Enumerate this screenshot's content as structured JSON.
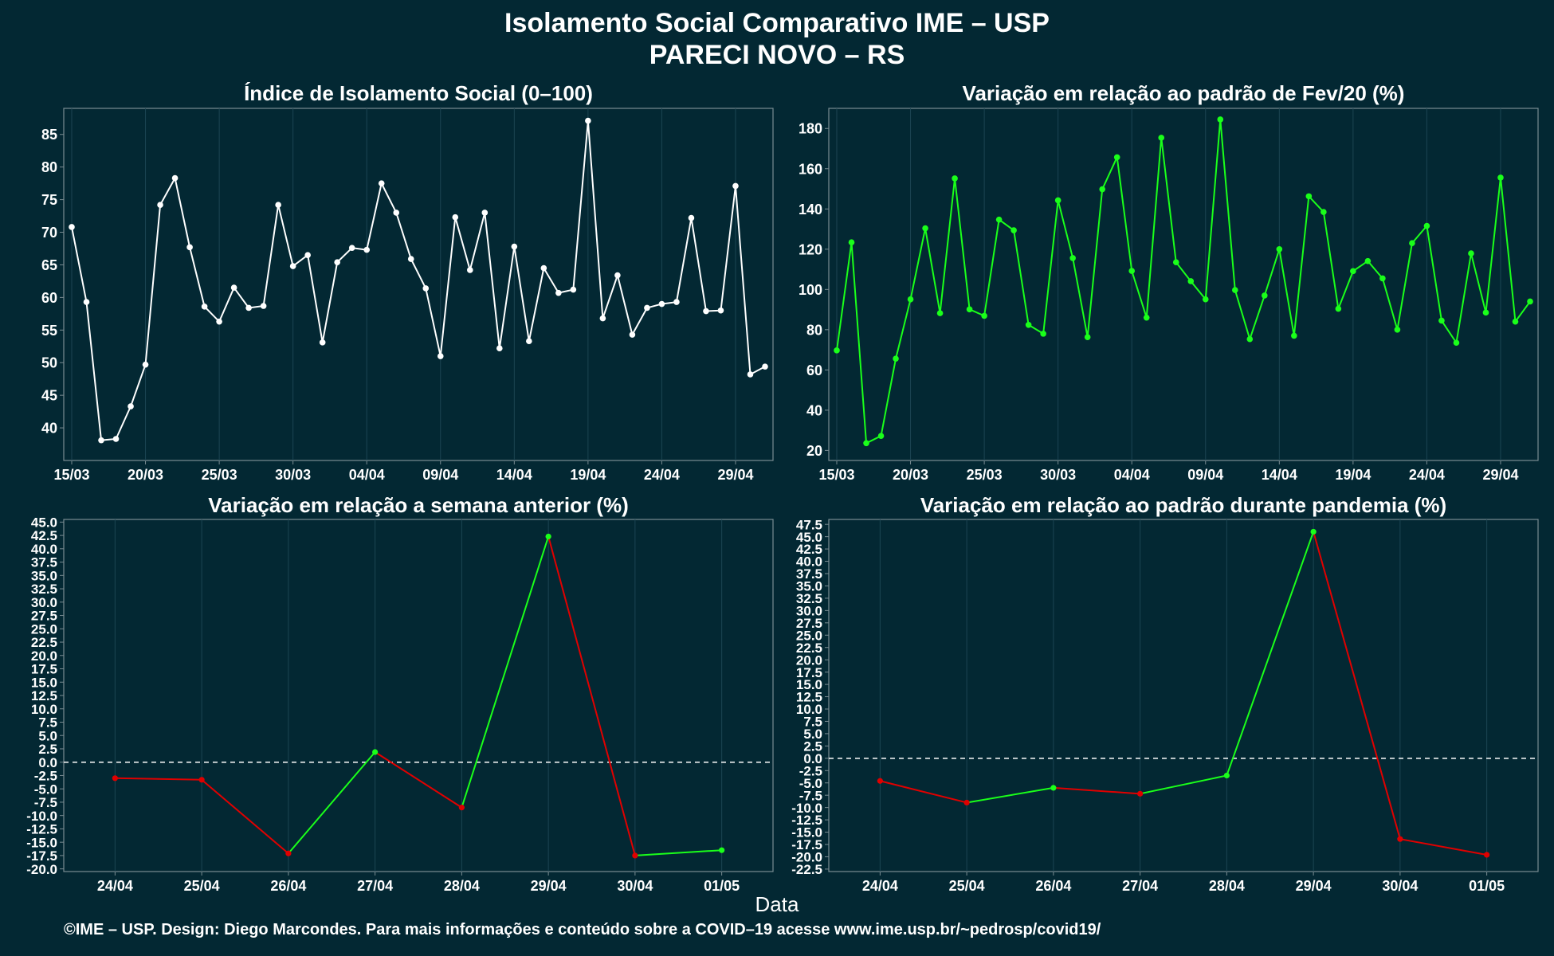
{
  "header": {
    "title": "Isolamento Social Comparativo IME – USP",
    "subtitle": "PARECI NOVO – RS"
  },
  "footer": {
    "credit": "©IME – USP. Design: Diego Marcondes. Para mais informações e conteúdo sobre a COVID–19 acesse www.ime.usp.br/~pedrosp/covid19/"
  },
  "axis": {
    "xlabel": "Data"
  },
  "colors": {
    "background": "#032833",
    "white": "#ffffff",
    "green": "#1aff1a",
    "red": "#e00000",
    "grid": "#1c4553",
    "frame": "#7a8c92"
  },
  "chart_data": [
    {
      "type": "line",
      "title": "Índice de Isolamento Social (0–100)",
      "tick_labels": [
        "15/03",
        "20/03",
        "25/03",
        "30/03",
        "04/04",
        "09/04",
        "14/04",
        "19/04",
        "24/04",
        "29/04"
      ],
      "tick_index": [
        0,
        5,
        10,
        15,
        20,
        25,
        30,
        35,
        40,
        45
      ],
      "ylim": [
        35,
        89
      ],
      "yticks": [
        40,
        45,
        50,
        55,
        60,
        65,
        70,
        75,
        80,
        85
      ],
      "color": "#ffffff",
      "grid": true,
      "values": [
        70.8,
        59.3,
        38.1,
        38.3,
        43.3,
        49.7,
        74.2,
        78.3,
        67.7,
        58.6,
        56.3,
        61.5,
        58.4,
        58.7,
        74.2,
        64.8,
        66.5,
        53.1,
        65.4,
        67.6,
        67.3,
        77.5,
        73.0,
        65.9,
        61.4,
        51.0,
        72.3,
        64.2,
        73.0,
        52.2,
        67.8,
        53.3,
        64.5,
        60.7,
        61.2,
        87.1,
        56.8,
        63.4,
        54.3,
        58.4,
        59.0,
        59.3,
        72.2,
        57.9,
        58.0,
        77.1,
        48.2,
        49.4
      ]
    },
    {
      "type": "line",
      "title": "Variação em relação ao padrão de Fev/20 (%)",
      "tick_labels": [
        "15/03",
        "20/03",
        "25/03",
        "30/03",
        "04/04",
        "09/04",
        "14/04",
        "19/04",
        "24/04",
        "29/04"
      ],
      "tick_index": [
        0,
        5,
        10,
        15,
        20,
        25,
        30,
        35,
        40,
        45
      ],
      "ylim": [
        15,
        190
      ],
      "yticks": [
        20,
        40,
        60,
        80,
        100,
        120,
        140,
        160,
        180
      ],
      "color": "#1aff1a",
      "grid": true,
      "values": [
        69.7,
        123.4,
        23.6,
        27.2,
        65.6,
        95.1,
        130.4,
        88.2,
        155.2,
        90.1,
        86.9,
        134.7,
        129.4,
        82.4,
        78.0,
        144.3,
        115.6,
        76.3,
        149.8,
        165.7,
        109.2,
        86.0,
        175.4,
        113.5,
        104.1,
        95.1,
        184.5,
        99.7,
        75.3,
        97.0,
        120.0,
        77.0,
        146.3,
        138.5,
        90.4,
        109.1,
        114.1,
        105.5,
        80.0,
        123.0,
        131.6,
        84.5,
        73.5,
        117.9,
        88.5,
        155.6,
        84.0,
        94.0
      ]
    },
    {
      "type": "line",
      "title": "Variação em relação a semana anterior (%)",
      "categories": [
        "24/04",
        "25/04",
        "26/04",
        "27/04",
        "28/04",
        "29/04",
        "30/04",
        "01/05"
      ],
      "ylim": [
        -20.5,
        45.5
      ],
      "yticks": [
        -20.0,
        -17.5,
        -15.0,
        -12.5,
        -10.0,
        -7.5,
        -5.0,
        -2.5,
        0.0,
        2.5,
        5.0,
        7.5,
        10.0,
        12.5,
        15.0,
        17.5,
        20.0,
        22.5,
        25.0,
        27.5,
        30.0,
        32.5,
        35.0,
        37.5,
        40.0,
        42.5,
        45.0
      ],
      "zero_line": true,
      "up_color": "#1aff1a",
      "down_color": "#e00000",
      "grid": true,
      "values": [
        -3.0,
        -3.3,
        -17.1,
        1.9,
        -8.5,
        42.3,
        -17.5,
        -16.5
      ]
    },
    {
      "type": "line",
      "title": "Variação em relação ao padrão durante pandemia (%)",
      "categories": [
        "24/04",
        "25/04",
        "26/04",
        "27/04",
        "28/04",
        "29/04",
        "30/04",
        "01/05"
      ],
      "ylim": [
        -23,
        48.5
      ],
      "yticks": [
        -22.5,
        -20.0,
        -17.5,
        -15.0,
        -12.5,
        -10.0,
        -7.5,
        -5.0,
        -2.5,
        0.0,
        2.5,
        5.0,
        7.5,
        10.0,
        12.5,
        15.0,
        17.5,
        20.0,
        22.5,
        25.0,
        27.5,
        30.0,
        32.5,
        35.0,
        37.5,
        40.0,
        42.5,
        45.0,
        47.5
      ],
      "zero_line": true,
      "up_color": "#1aff1a",
      "down_color": "#e00000",
      "grid": true,
      "values": [
        -4.6,
        -9.0,
        -6.0,
        -7.2,
        -3.5,
        46.0,
        -16.4,
        -19.6
      ]
    }
  ]
}
